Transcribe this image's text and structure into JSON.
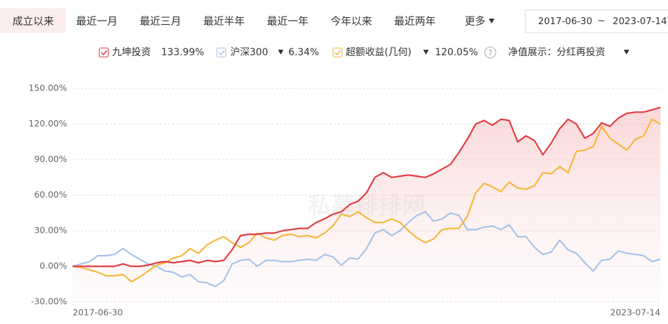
{
  "tabs": [
    "成立以来",
    "最近一月",
    "最近三月",
    "最近半年",
    "最近一年",
    "今年以来",
    "最近两年",
    "更多"
  ],
  "date_range": {
    "start": "2017-06-30",
    "separator": "~",
    "end": "2023-07-14"
  },
  "legend_extra": {
    "help": "?",
    "display_mode": "净值展示：分红再投资"
  },
  "chart_data": {
    "type": "line",
    "watermark": "私募排排网",
    "categories": [
      "2017-06-30",
      null,
      null,
      null,
      null,
      null,
      null,
      null,
      null,
      null,
      null,
      null,
      null,
      null,
      null,
      null,
      null,
      null,
      null,
      null,
      null,
      null,
      null,
      null,
      null,
      null,
      null,
      null,
      null,
      null,
      null,
      null,
      null,
      null,
      null,
      null,
      null,
      null,
      null,
      null,
      null,
      null,
      null,
      null,
      null,
      null,
      null,
      null,
      null,
      null,
      null,
      null,
      null,
      null,
      null,
      null,
      null,
      null,
      null,
      null,
      null,
      null,
      null,
      null,
      null,
      null,
      null,
      null,
      null,
      null,
      "2023-07-14"
    ],
    "series": [
      {
        "name": "九坤投资",
        "color": "#e23a40",
        "return_label": "133.99%",
        "area": true,
        "values": [
          0,
          0,
          0,
          0,
          0,
          0,
          2,
          0,
          0,
          1,
          3,
          4,
          3,
          4,
          5,
          3,
          5,
          4,
          5,
          14,
          26,
          27,
          27,
          28,
          28,
          30,
          31,
          32,
          32,
          37,
          40,
          44,
          46,
          52,
          55,
          62,
          75,
          79,
          75,
          76,
          77,
          76,
          75,
          78,
          82,
          86,
          96,
          107,
          120,
          123,
          119,
          124,
          123,
          105,
          110,
          106,
          94,
          104,
          116,
          124,
          120,
          108,
          112,
          121,
          118,
          125,
          129,
          130,
          130,
          132,
          134
        ]
      },
      {
        "name": "沪深300",
        "color": "#a7c3e8",
        "return_label": "6.34%",
        "area": false,
        "values": [
          0,
          2,
          4,
          9,
          9,
          10,
          15,
          10,
          6,
          2,
          0,
          -4,
          -5,
          -9,
          -7,
          -13,
          -14,
          -17,
          -12,
          2,
          5,
          6,
          0,
          5,
          5,
          4,
          4,
          5,
          6,
          5,
          10,
          8,
          1,
          7,
          6,
          15,
          28,
          31,
          26,
          30,
          37,
          43,
          46,
          38,
          40,
          45,
          43,
          31,
          31,
          33,
          34,
          31,
          35,
          25,
          25,
          16,
          10,
          12,
          22,
          14,
          11,
          3,
          -4,
          5,
          6,
          13,
          11,
          10,
          9,
          4,
          6
        ]
      },
      {
        "name": "超额收益(几何)",
        "color": "#f5b73c",
        "return_label": "120.05%",
        "area": false,
        "values": [
          0,
          -1,
          -3,
          -5,
          -8,
          -8,
          -7,
          -13,
          -9,
          -4,
          1,
          3,
          7,
          9,
          15,
          11,
          18,
          22,
          25,
          20,
          16,
          20,
          28,
          24,
          22,
          26,
          27,
          25,
          26,
          24,
          28,
          34,
          44,
          42,
          46,
          41,
          37,
          37,
          40,
          37,
          30,
          24,
          20,
          23,
          31,
          32,
          32,
          42,
          62,
          70,
          67,
          63,
          71,
          66,
          65,
          68,
          79,
          78,
          84,
          79,
          97,
          98,
          101,
          118,
          108,
          103,
          98,
          107,
          110,
          124,
          120
        ]
      }
    ],
    "ylim": [
      -30,
      150
    ],
    "yticks": [
      {
        "value": -30,
        "label": "-30.00%"
      },
      {
        "value": 0,
        "label": "0.00%"
      },
      {
        "value": 30,
        "label": "30.00%"
      },
      {
        "value": 60,
        "label": "60.00%"
      },
      {
        "value": 90,
        "label": "90.00%"
      },
      {
        "value": 120,
        "label": "120.00%"
      },
      {
        "value": 150,
        "label": "150.00%"
      }
    ],
    "grid": true
  }
}
